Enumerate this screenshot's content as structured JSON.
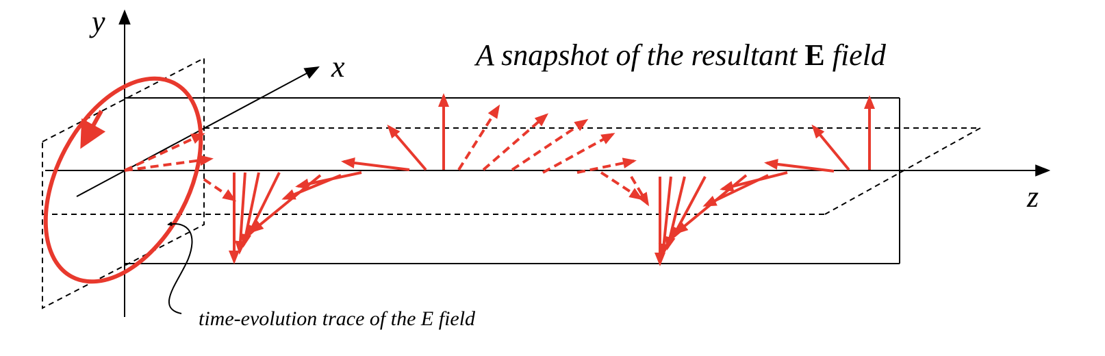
{
  "axes": {
    "x_label": "x",
    "y_label": "y",
    "z_label": "z"
  },
  "title": {
    "prefix": "A snapshot of the resultant ",
    "bold": "E",
    "suffix": " field"
  },
  "caption": "time-evolution trace of the E field",
  "colors": {
    "field": "#e8392d",
    "line": "#000000"
  }
}
